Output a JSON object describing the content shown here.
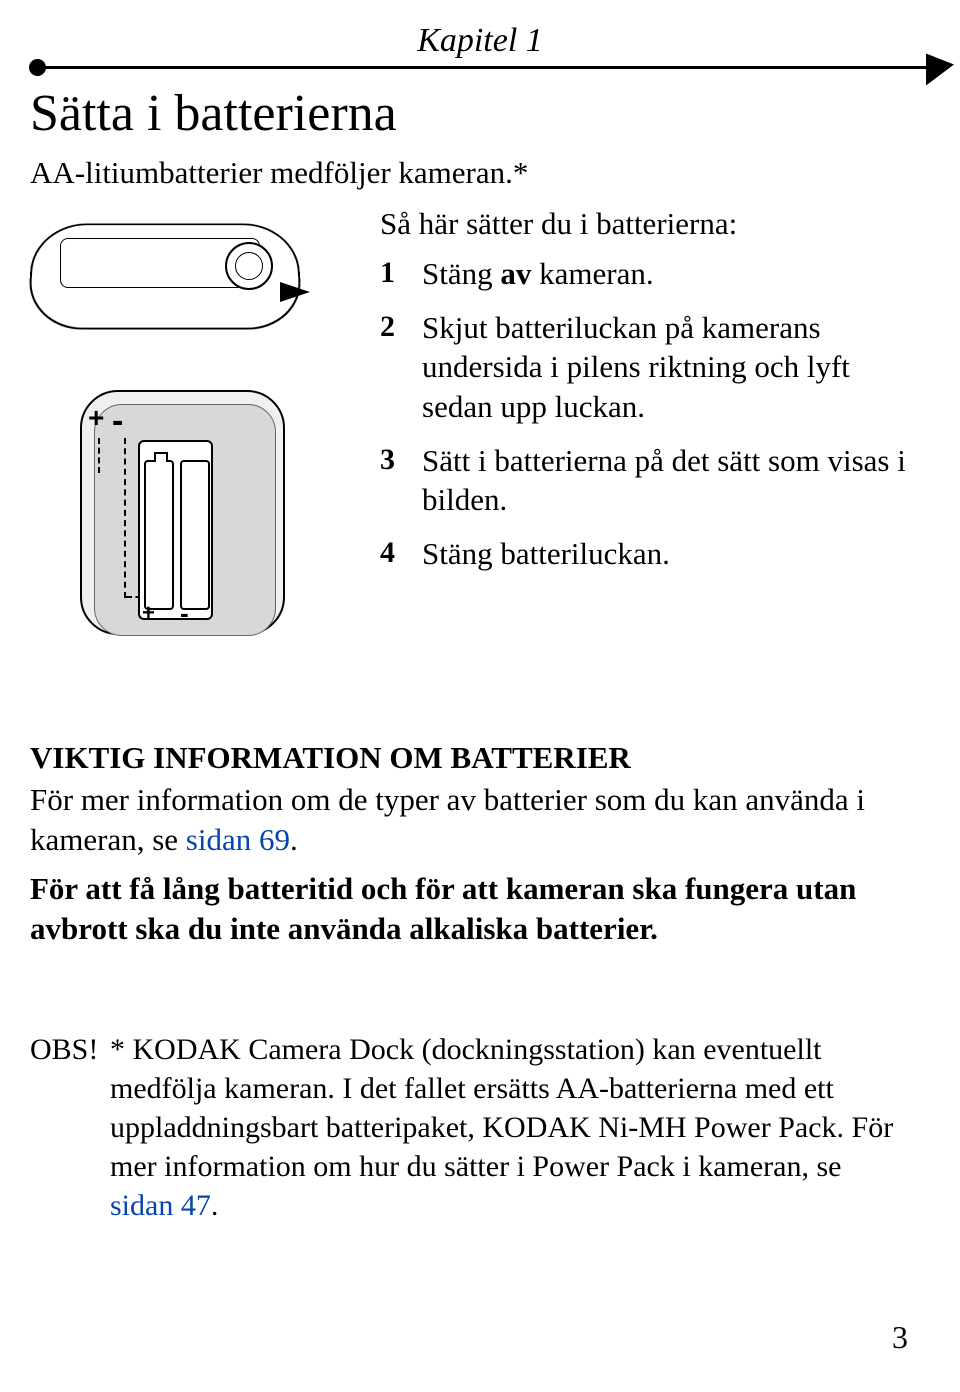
{
  "chapter_label": "Kapitel 1",
  "main_title": "Sätta i batterierna",
  "subtitle": "AA-litiumbatterier medföljer kameran.*",
  "steps_intro": "Så här sätter du i batterierna:",
  "steps": [
    {
      "num": "1",
      "pre": "Stäng ",
      "bold": "av",
      "post": " kameran."
    },
    {
      "num": "2",
      "pre": "Skjut batteriluckan på kamerans undersida i pilens riktning och lyft sedan upp luckan.",
      "bold": "",
      "post": ""
    },
    {
      "num": "3",
      "pre": "Sätt i batterierna på det sätt som visas i bilden.",
      "bold": "",
      "post": ""
    },
    {
      "num": "4",
      "pre": "Stäng batteriluckan.",
      "bold": "",
      "post": ""
    }
  ],
  "important": {
    "heading": "VIKTIG INFORMATION OM BATTERIER",
    "text_before_link": "För mer information om de typer av batterier som du kan använda i kameran, se ",
    "link_text": "sidan 69",
    "text_after_link": ".",
    "bold_note": "För att få lång batteritid och för att kameran ska fungera utan avbrott ska du inte använda alkaliska batterier."
  },
  "obs": {
    "label": "OBS! ",
    "text_before_link": "* KODAK Camera Dock (dockningsstation) kan eventuellt medfölja kameran. I det fallet ersätts AA-batterierna med ett uppladdningsbart batteripaket, KODAK Ni-MH Power Pack. För mer information om hur du sätter i Power Pack i kameran, se ",
    "link_text": "sidan 47",
    "text_after_link": "."
  },
  "polarity": {
    "plus": "+",
    "minus": "-"
  },
  "page_number": "3",
  "colors": {
    "text": "#000000",
    "link": "#0645ad",
    "background": "#ffffff",
    "illustration_fill": "#d8d8d8"
  },
  "typography": {
    "body_fontsize_pt": 23,
    "title_fontsize_pt": 39,
    "chapter_fontsize_pt": 25,
    "font_family": "serif-italic/condensed"
  }
}
